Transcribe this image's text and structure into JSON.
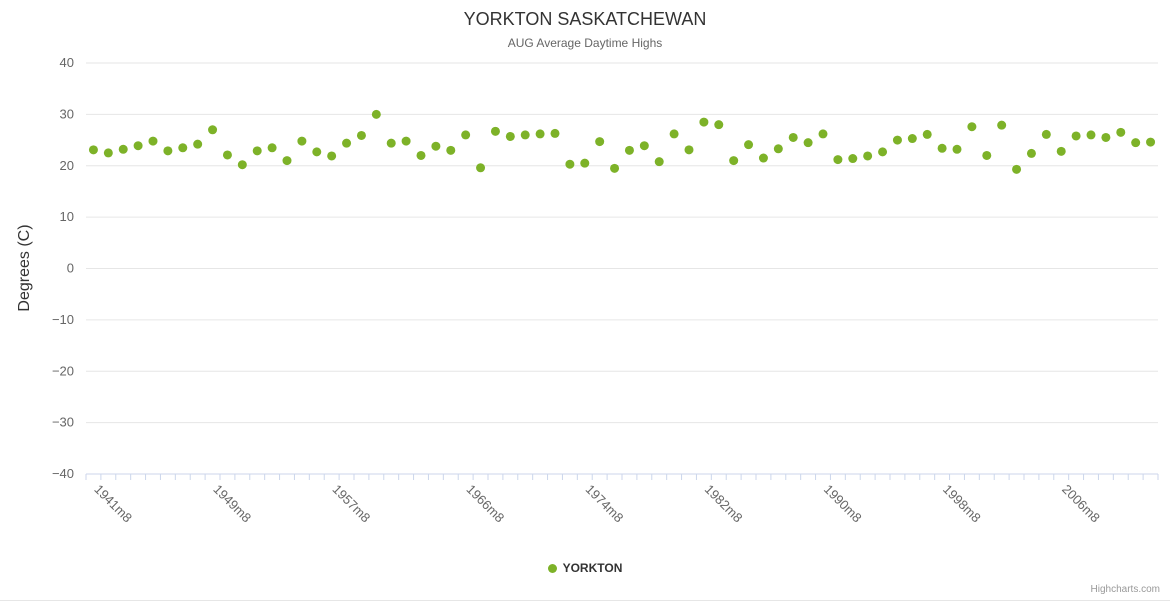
{
  "credits": "Highcharts.com",
  "colors": {
    "point": "#7db228",
    "grid": "#e6e6e6",
    "axis_line": "#ccd6eb",
    "tick": "#ccd6eb",
    "title": "#333333",
    "subtitle": "#666666",
    "axis_label": "#666666",
    "legend_text": "#333333",
    "credits_text": "#999999"
  },
  "chart_data": {
    "type": "scatter",
    "title": "YORKTON SASKATCHEWAN",
    "subtitle": "AUG Average Daytime Highs",
    "ylabel": "Degrees (C)",
    "ylim": [
      -40,
      40
    ],
    "y_ticks": [
      40,
      30,
      20,
      10,
      0,
      -10,
      -20,
      -30,
      -40
    ],
    "grid": true,
    "legend_position": "bottom",
    "x_range": [
      "1941m8",
      "2012m8"
    ],
    "x_start_year": 1941,
    "x_suffix": "m8",
    "x_tick_labels": [
      {
        "label": "1941m8",
        "index": 0
      },
      {
        "label": "1949m8",
        "index": 8
      },
      {
        "label": "1957m8",
        "index": 16
      },
      {
        "label": "1966m8",
        "index": 25
      },
      {
        "label": "1974m8",
        "index": 33
      },
      {
        "label": "1982m8",
        "index": 41
      },
      {
        "label": "1990m8",
        "index": 49
      },
      {
        "label": "1998m8",
        "index": 57
      },
      {
        "label": "2006m8",
        "index": 65
      }
    ],
    "series": [
      {
        "name": "YORKTON",
        "color": "#7db228",
        "values": [
          23.1,
          22.5,
          23.2,
          23.9,
          24.8,
          22.9,
          23.5,
          24.2,
          27.0,
          22.1,
          20.2,
          22.9,
          23.5,
          21.0,
          24.8,
          22.7,
          21.9,
          24.4,
          25.9,
          30.0,
          24.4,
          24.8,
          22.0,
          23.8,
          23.0,
          26.0,
          19.6,
          26.7,
          25.7,
          26.0,
          26.2,
          26.3,
          20.3,
          20.5,
          24.7,
          19.5,
          23.0,
          23.9,
          20.8,
          26.2,
          23.1,
          28.5,
          28.0,
          21.0,
          24.1,
          21.5,
          23.3,
          25.5,
          24.5,
          26.2,
          21.2,
          21.4,
          21.9,
          22.7,
          25.0,
          25.3,
          26.1,
          23.4,
          23.2,
          27.6,
          22.0,
          27.9,
          19.3,
          22.4,
          26.1,
          22.8,
          25.8,
          26.0,
          25.5,
          26.5,
          24.5,
          24.6
        ]
      }
    ]
  }
}
